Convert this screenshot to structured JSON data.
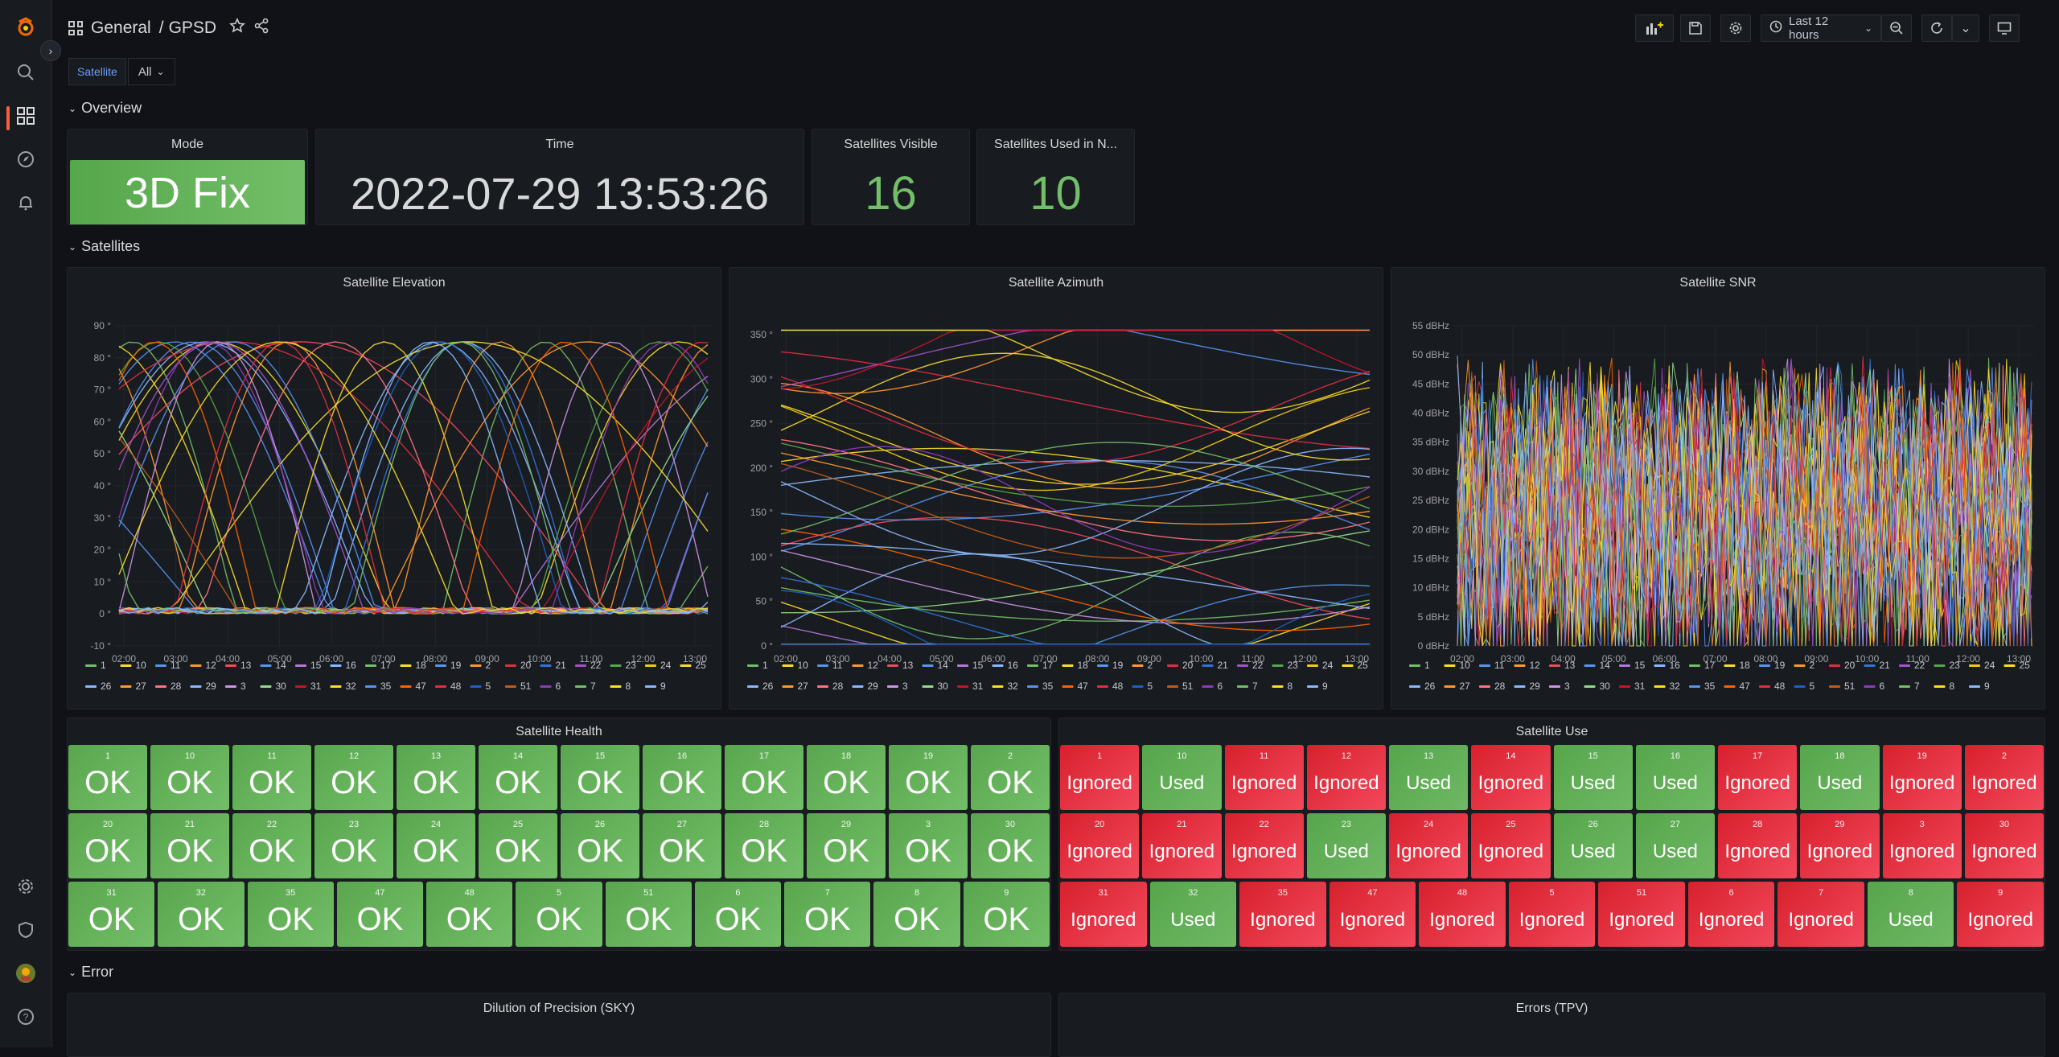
{
  "breadcrumb": {
    "folder": "General",
    "separator": "/",
    "dashboard": "GPSD"
  },
  "toolbar": {
    "time_range": "Last 12 hours"
  },
  "variables": {
    "label": "Satellite",
    "value": "All"
  },
  "rows": {
    "overview": "Overview",
    "satellites": "Satellites",
    "error": "Error"
  },
  "stats": {
    "mode": {
      "title": "Mode",
      "value": "3D Fix"
    },
    "time": {
      "title": "Time",
      "value": "2022-07-29 13:53:26"
    },
    "visible": {
      "title": "Satellites Visible",
      "value": "16"
    },
    "used": {
      "title": "Satellites Used in N...",
      "value": "10"
    }
  },
  "panels": {
    "elevation": "Satellite Elevation",
    "azimuth": "Satellite Azimuth",
    "snr": "Satellite SNR",
    "health": "Satellite Health",
    "use": "Satellite Use",
    "dop": "Dilution of Precision (SKY)",
    "errors": "Errors (TPV)"
  },
  "x_ticks": [
    "02:00",
    "03:00",
    "04:00",
    "05:00",
    "06:00",
    "07:00",
    "08:00",
    "09:00",
    "10:00",
    "11:00",
    "12:00",
    "13:00"
  ],
  "legend": [
    "1",
    "10",
    "11",
    "12",
    "13",
    "14",
    "15",
    "16",
    "17",
    "18",
    "19",
    "2",
    "20",
    "21",
    "22",
    "23",
    "24",
    "25",
    "26",
    "27",
    "28",
    "29",
    "3",
    "30",
    "31",
    "32",
    "35",
    "47",
    "48",
    "5",
    "51",
    "6",
    "7",
    "8",
    "9"
  ],
  "legend_colors": [
    "#73bf69",
    "#fade2a",
    "#5794f2",
    "#ff9830",
    "#f2495c",
    "#5794f2",
    "#b877d9",
    "#8ab8ff",
    "#73bf69",
    "#fade2a",
    "#5794f2",
    "#ff9830",
    "#e02f44",
    "#3274d9",
    "#a352cc",
    "#56a64b",
    "#f2cc0c",
    "#fade2a",
    "#8ab8ff",
    "#ff9830",
    "#ff7383",
    "#8ab8ff",
    "#ca95e5",
    "#96d98d",
    "#c4162a",
    "#fade2a",
    "#5794f2",
    "#fa6400",
    "#e02f44",
    "#1f60c4",
    "#c15c17",
    "#8f3bb8",
    "#73bf69",
    "#fade2a",
    "#8ab8ff"
  ],
  "chart_data": [
    {
      "type": "line",
      "title": "Satellite Elevation",
      "unit": "°",
      "ylim": [
        -10,
        90
      ],
      "y_ticks": [
        "90 °",
        "80 °",
        "70 °",
        "60 °",
        "50 °",
        "40 °",
        "30 °",
        "20 °",
        "10 °",
        "0 °",
        "-10 °"
      ]
    },
    {
      "type": "line",
      "title": "Satellite Azimuth",
      "unit": "°",
      "ylim": [
        0,
        360
      ],
      "y_ticks": [
        "350 °",
        "300 °",
        "250 °",
        "200 °",
        "150 °",
        "100 °",
        "50 °",
        "0 °"
      ]
    },
    {
      "type": "line",
      "title": "Satellite SNR",
      "unit": "dBHz",
      "ylim": [
        0,
        55
      ],
      "y_ticks": [
        "55 dBHz",
        "50 dBHz",
        "45 dBHz",
        "40 dBHz",
        "35 dBHz",
        "30 dBHz",
        "25 dBHz",
        "20 dBHz",
        "15 dBHz",
        "10 dBHz",
        "5 dBHz",
        "0 dBHz"
      ]
    }
  ],
  "health": {
    "rows": [
      [
        [
          "1",
          "OK"
        ],
        [
          "10",
          "OK"
        ],
        [
          "11",
          "OK"
        ],
        [
          "12",
          "OK"
        ],
        [
          "13",
          "OK"
        ],
        [
          "14",
          "OK"
        ],
        [
          "15",
          "OK"
        ],
        [
          "16",
          "OK"
        ],
        [
          "17",
          "OK"
        ],
        [
          "18",
          "OK"
        ],
        [
          "19",
          "OK"
        ],
        [
          "2",
          "OK"
        ]
      ],
      [
        [
          "20",
          "OK"
        ],
        [
          "21",
          "OK"
        ],
        [
          "22",
          "OK"
        ],
        [
          "23",
          "OK"
        ],
        [
          "24",
          "OK"
        ],
        [
          "25",
          "OK"
        ],
        [
          "26",
          "OK"
        ],
        [
          "27",
          "OK"
        ],
        [
          "28",
          "OK"
        ],
        [
          "29",
          "OK"
        ],
        [
          "3",
          "OK"
        ],
        [
          "30",
          "OK"
        ]
      ],
      [
        [
          "31",
          "OK"
        ],
        [
          "32",
          "OK"
        ],
        [
          "35",
          "OK"
        ],
        [
          "47",
          "OK"
        ],
        [
          "48",
          "OK"
        ],
        [
          "5",
          "OK"
        ],
        [
          "51",
          "OK"
        ],
        [
          "6",
          "OK"
        ],
        [
          "7",
          "OK"
        ],
        [
          "8",
          "OK"
        ],
        [
          "9",
          "OK"
        ]
      ]
    ]
  },
  "use": {
    "rows": [
      [
        [
          "1",
          "Ignored"
        ],
        [
          "10",
          "Used"
        ],
        [
          "11",
          "Ignored"
        ],
        [
          "12",
          "Ignored"
        ],
        [
          "13",
          "Used"
        ],
        [
          "14",
          "Ignored"
        ],
        [
          "15",
          "Used"
        ],
        [
          "16",
          "Used"
        ],
        [
          "17",
          "Ignored"
        ],
        [
          "18",
          "Used"
        ],
        [
          "19",
          "Ignored"
        ],
        [
          "2",
          "Ignored"
        ]
      ],
      [
        [
          "20",
          "Ignored"
        ],
        [
          "21",
          "Ignored"
        ],
        [
          "22",
          "Ignored"
        ],
        [
          "23",
          "Used"
        ],
        [
          "24",
          "Ignored"
        ],
        [
          "25",
          "Ignored"
        ],
        [
          "26",
          "Used"
        ],
        [
          "27",
          "Used"
        ],
        [
          "28",
          "Ignored"
        ],
        [
          "29",
          "Ignored"
        ],
        [
          "3",
          "Ignored"
        ],
        [
          "30",
          "Ignored"
        ]
      ],
      [
        [
          "31",
          "Ignored"
        ],
        [
          "32",
          "Used"
        ],
        [
          "35",
          "Ignored"
        ],
        [
          "47",
          "Ignored"
        ],
        [
          "48",
          "Ignored"
        ],
        [
          "5",
          "Ignored"
        ],
        [
          "51",
          "Ignored"
        ],
        [
          "6",
          "Ignored"
        ],
        [
          "7",
          "Ignored"
        ],
        [
          "8",
          "Used"
        ],
        [
          "9",
          "Ignored"
        ]
      ]
    ]
  }
}
